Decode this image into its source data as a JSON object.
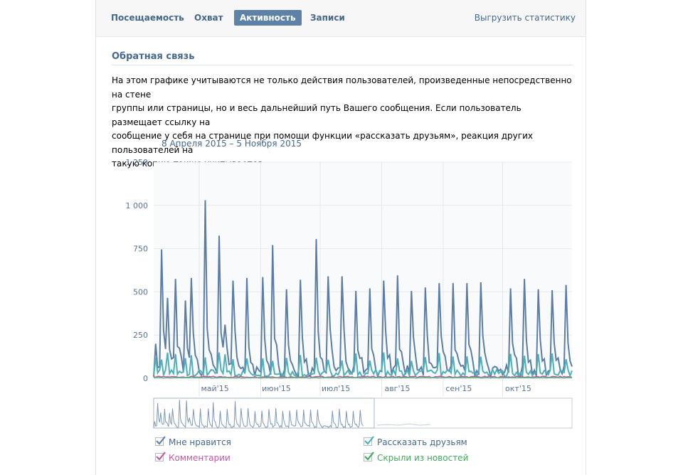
{
  "tabs": [
    {
      "label": "Посещаемость",
      "active": false
    },
    {
      "label": "Охват",
      "active": false
    },
    {
      "label": "Активность",
      "active": true
    },
    {
      "label": "Записи",
      "active": false
    }
  ],
  "export_label": "Выгрузить статистику",
  "section_title": "Обратная связь",
  "description": [
    "На этом графике учитываются не только действия пользователей, произведенные непосредственно на стене",
    "группы или страницы, но и весь дальнейший путь Вашего сообщения. Если пользователь размещает ссылку на",
    "сообщение у себя на странице при помощи функции «рассказать друзьям», реакция других пользователей на",
    "такую копию также учитывается."
  ],
  "date_range": "8 Апреля 2015 – 5 Ноября 2015",
  "colors": {
    "likes": "#5c7ea6",
    "shares": "#4fb1b8",
    "comments": "#c657a0",
    "hidden": "#43a95e",
    "link": "#45688e"
  },
  "legend": [
    {
      "key": "likes",
      "label": "Мне нравится",
      "color": "#45688e",
      "checked": true
    },
    {
      "key": "shares",
      "label": "Рассказать друзьям",
      "color": "#45688e",
      "checked": true
    },
    {
      "key": "comments",
      "label": "Комментарии",
      "color": "#c657a0",
      "checked": true
    },
    {
      "key": "hidden",
      "label": "Скрыли из новостей",
      "color": "#43a95e",
      "checked": true
    }
  ],
  "chart_data": {
    "type": "line",
    "ylim": [
      0,
      1250
    ],
    "y_ticks": [
      "0",
      "250",
      "500",
      "750",
      "1 000",
      "1 250"
    ],
    "x_range_days": [
      0,
      211
    ],
    "month_ticks": [
      {
        "label": "май'15",
        "day": 23
      },
      {
        "label": "июн'15",
        "day": 54
      },
      {
        "label": "июл'15",
        "day": 84
      },
      {
        "label": "авг'15",
        "day": 115
      },
      {
        "label": "сен'15",
        "day": 146
      },
      {
        "label": "окт'15",
        "day": 176
      }
    ],
    "grid": true,
    "legend_position": "bottom",
    "series_likes_peaks": [
      {
        "day": 1,
        "value": 200
      },
      {
        "day": 4,
        "value": 745
      },
      {
        "day": 7,
        "value": 465
      },
      {
        "day": 11,
        "value": 575
      },
      {
        "day": 16,
        "value": 450
      },
      {
        "day": 19,
        "value": 580
      },
      {
        "day": 26,
        "value": 1030
      },
      {
        "day": 33,
        "value": 825
      },
      {
        "day": 36,
        "value": 310
      },
      {
        "day": 40,
        "value": 565
      },
      {
        "day": 47,
        "value": 580
      },
      {
        "day": 55,
        "value": 585
      },
      {
        "day": 60,
        "value": 770
      },
      {
        "day": 67,
        "value": 515
      },
      {
        "day": 74,
        "value": 570
      },
      {
        "day": 82,
        "value": 805
      },
      {
        "day": 88,
        "value": 590
      },
      {
        "day": 95,
        "value": 590
      },
      {
        "day": 102,
        "value": 505
      },
      {
        "day": 109,
        "value": 520
      },
      {
        "day": 116,
        "value": 565
      },
      {
        "day": 123,
        "value": 595
      },
      {
        "day": 130,
        "value": 505
      },
      {
        "day": 137,
        "value": 525
      },
      {
        "day": 144,
        "value": 550
      },
      {
        "day": 151,
        "value": 550
      },
      {
        "day": 158,
        "value": 550
      },
      {
        "day": 165,
        "value": 555
      },
      {
        "day": 180,
        "value": 520
      },
      {
        "day": 187,
        "value": 575
      },
      {
        "day": 194,
        "value": 515
      },
      {
        "day": 201,
        "value": 510
      },
      {
        "day": 208,
        "value": 540
      }
    ]
  }
}
